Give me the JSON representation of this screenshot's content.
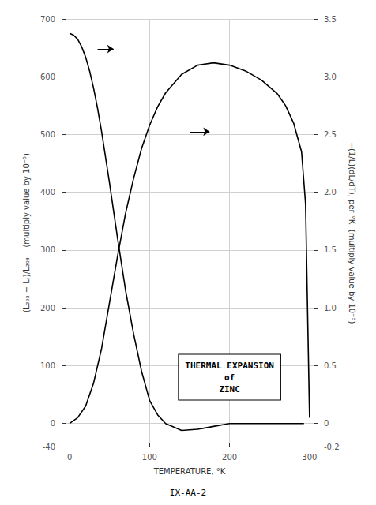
{
  "chart_data": {
    "type": "line",
    "xlabel": "TEMPERATURE, °K",
    "ylabel": "(L₂₉₃ − Lₜ)/L₂₉₃    (multiply value by 10⁻⁵)",
    "y2label": "−(1/L)(dL/dT), per °K  (multiply value by 10⁻⁵)",
    "footer": "IX-AA-2",
    "xlim": [
      -10,
      310
    ],
    "ylim": [
      -40,
      700
    ],
    "y2lim": [
      -0.2,
      3.5
    ],
    "xticks": [
      0,
      100,
      200,
      300
    ],
    "yticks": [
      -40,
      0,
      100,
      200,
      300,
      400,
      500,
      600,
      700
    ],
    "y2ticks": [
      -0.2,
      0,
      0.5,
      {
        "value": 1,
        "label": "1.0"
      },
      1.5,
      {
        "value": 2,
        "label": "2.0"
      },
      2.5,
      {
        "value": 3,
        "label": "3.0"
      },
      3.5
    ],
    "grid": true,
    "annotations": [
      {
        "text": "THERMAL EXPANSION\nof\nZINC",
        "x": 200,
        "y": 80
      }
    ],
    "arrows": [
      {
        "x1": 35,
        "x2": 55,
        "y": 648
      },
      {
        "x1": 150,
        "x2": 175,
        "y": 505
      }
    ],
    "series": [
      {
        "color": "#000000",
        "axis": "y",
        "x": [
          0,
          5,
          10,
          15,
          20,
          25,
          30,
          35,
          40,
          50,
          60,
          70,
          80,
          90,
          100,
          110,
          120,
          140,
          160,
          180,
          200,
          220,
          240,
          260,
          280,
          293
        ],
        "values": [
          675,
          672,
          665,
          652,
          634,
          610,
          580,
          545,
          505,
          415,
          320,
          230,
          155,
          90,
          40,
          15,
          0,
          -12,
          -10,
          -5,
          0,
          0,
          0,
          0,
          0,
          0
        ]
      },
      {
        "color": "#000000",
        "axis": "y2",
        "x": [
          0,
          10,
          20,
          30,
          40,
          50,
          60,
          70,
          80,
          90,
          100,
          110,
          120,
          140,
          160,
          180,
          200,
          220,
          240,
          260,
          270,
          280,
          290,
          295,
          300
        ],
        "values": [
          0.0,
          0.05,
          0.15,
          0.35,
          0.65,
          1.05,
          1.45,
          1.82,
          2.12,
          2.38,
          2.58,
          2.74,
          2.86,
          3.02,
          3.1,
          3.12,
          3.1,
          3.05,
          2.97,
          2.85,
          2.75,
          2.6,
          2.35,
          1.9,
          0.05
        ]
      }
    ]
  }
}
